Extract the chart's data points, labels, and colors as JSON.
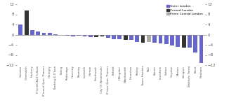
{
  "categories": [
    "Camden",
    "Greenwich",
    "Hackney",
    "H'smith And Fulham",
    "R'mond Upon Thames",
    "Haringey",
    "Barking & D'ham",
    "Ealing",
    "Redbridge",
    "Havering",
    "Bromley",
    "Lambeth",
    "Harrow",
    "Southwark",
    "City Of Westminster",
    "K'ston Upon Thames",
    "Enfield",
    "Hillingdon",
    "Wandsworth",
    "Hounslow",
    "Bexley",
    "Tower Hamlets",
    "K&C",
    "Barnet",
    "Lewisham",
    "Sutton",
    "Croydon",
    "Merton",
    "Islington",
    "Waltham Forest",
    "Brent",
    "Newham"
  ],
  "values": [
    4.0,
    9.5,
    1.8,
    1.2,
    0.8,
    0.6,
    0.2,
    -0.2,
    -0.4,
    -0.6,
    -0.5,
    -0.7,
    -0.9,
    -0.9,
    -0.7,
    -1.2,
    -1.8,
    -1.8,
    -2.2,
    -2.2,
    -2.8,
    -3.2,
    -3.0,
    -3.2,
    -3.5,
    -3.8,
    -4.2,
    -4.8,
    -5.0,
    -5.2,
    -7.0,
    -11.2
  ],
  "colors": [
    "#6666cc",
    "#333333",
    "#6666cc",
    "#6666cc",
    "#6666cc",
    "#6666cc",
    "#6666cc",
    "#6666cc",
    "#6666cc",
    "#6666cc",
    "#6666cc",
    "#6666cc",
    "#6666cc",
    "#333333",
    "#333333",
    "#6666cc",
    "#6666cc",
    "#6666cc",
    "#333333",
    "#6666cc",
    "#6666cc",
    "#333333",
    "#aaaaaa",
    "#6666cc",
    "#6666cc",
    "#6666cc",
    "#6666cc",
    "#6666cc",
    "#333333",
    "#6666cc",
    "#6666cc",
    "#6666cc"
  ],
  "ylim": [
    -12,
    12
  ],
  "yticks": [
    -12,
    -8,
    -4,
    0,
    4,
    8,
    12
  ],
  "legend_labels": [
    "Outer London",
    "Central London",
    "Prime Central London"
  ],
  "legend_colors": [
    "#6666cc",
    "#333333",
    "#aaaaaa"
  ],
  "background_color": "#ffffff"
}
